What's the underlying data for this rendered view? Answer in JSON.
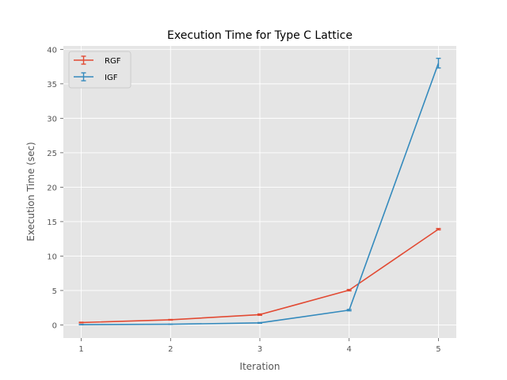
{
  "chart_data": {
    "type": "line",
    "title": "Execution Time for Type C Lattice",
    "xlabel": "Iteration",
    "ylabel": "Execution Time (sec)",
    "x": [
      1,
      2,
      3,
      4,
      5
    ],
    "xlim": [
      0.8,
      5.2
    ],
    "ylim": [
      -1.9,
      40.5
    ],
    "xticks": [
      1,
      2,
      3,
      4,
      5
    ],
    "yticks": [
      0,
      5,
      10,
      15,
      20,
      25,
      30,
      35,
      40
    ],
    "grid": true,
    "legend_position": "top-left",
    "error_bars": true,
    "series": [
      {
        "name": "RGF",
        "color": "#E24A33",
        "values": [
          0.35,
          0.75,
          1.5,
          5.05,
          13.9
        ],
        "errors": [
          0.05,
          0.05,
          0.1,
          0.1,
          0.1
        ]
      },
      {
        "name": "IGF",
        "color": "#348ABD",
        "values": [
          0.05,
          0.1,
          0.3,
          2.15,
          38.0
        ],
        "errors": [
          0.02,
          0.02,
          0.05,
          0.1,
          0.7
        ]
      }
    ]
  }
}
